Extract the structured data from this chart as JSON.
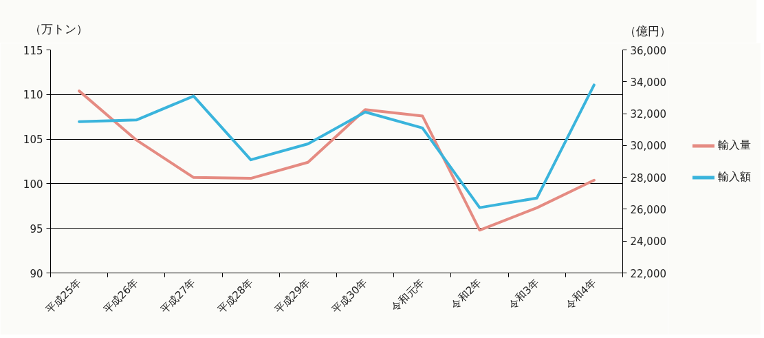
{
  "chart_data": {
    "type": "line",
    "categories": [
      "平成25年",
      "平成26年",
      "平成27年",
      "平成28年",
      "平成29年",
      "平成30年",
      "令和元年",
      "令和2年",
      "令和3年",
      "令和4年"
    ],
    "ylabel": "（万トン）",
    "y2label": "（億円）",
    "ylim": [
      90,
      115
    ],
    "yticks": [
      90,
      95,
      100,
      105,
      110,
      115
    ],
    "y2lim": [
      22000,
      36000
    ],
    "y2ticks": [
      {
        "value": 22000,
        "label": "22,000"
      },
      {
        "value": 24000,
        "label": "24,000"
      },
      {
        "value": 26000,
        "label": "26,000"
      },
      {
        "value": 28000,
        "label": "28,000"
      },
      {
        "value": 30000,
        "label": "30,000"
      },
      {
        "value": 32000,
        "label": "32,000"
      },
      {
        "value": 34000,
        "label": "34,000"
      },
      {
        "value": 36000,
        "label": "36,000"
      }
    ],
    "series": [
      {
        "name": "輸入量",
        "color": "#e58b82",
        "values": [
          110.4,
          104.9,
          100.7,
          100.6,
          102.4,
          108.3,
          107.6,
          94.8,
          97.3,
          100.4
        ]
      },
      {
        "name": "輸入額",
        "color": "#3ab4dc",
        "axis": "y2",
        "values": [
          31500,
          31600,
          33100,
          29100,
          30100,
          32100,
          31100,
          26100,
          26700,
          33800
        ]
      }
    ],
    "grid": "y",
    "legend": "right",
    "line_style": "solid"
  }
}
